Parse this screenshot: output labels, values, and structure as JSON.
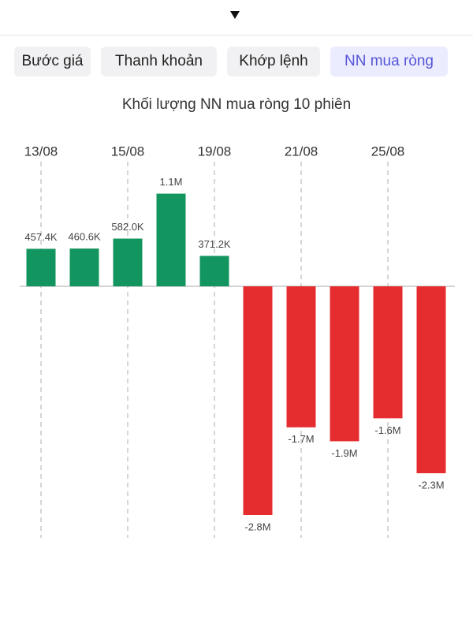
{
  "tabs": [
    "Bước giá",
    "Thanh khoản",
    "Khớp lệnh",
    "NN mua ròng"
  ],
  "active_tab": 3,
  "chart_data": {
    "type": "bar",
    "title": "Khối lượng NN mua ròng 10 phiên",
    "categories": [
      "13/08",
      null,
      "15/08",
      null,
      "19/08",
      null,
      "21/08",
      null,
      "25/08",
      null
    ],
    "values": [
      457400,
      460600,
      582000,
      1130000,
      371200,
      -2790000,
      -1720000,
      -1890000,
      -1610000,
      -2280000
    ],
    "value_labels": [
      "457.4K",
      "460.6K",
      "582.0K",
      "1.1M",
      "371.2K",
      "-2.8M",
      "-1.7M",
      "-1.9M",
      "-1.6M",
      "-2.3M"
    ],
    "positive_color": "#13955f",
    "negative_color": "#e52d2f"
  }
}
